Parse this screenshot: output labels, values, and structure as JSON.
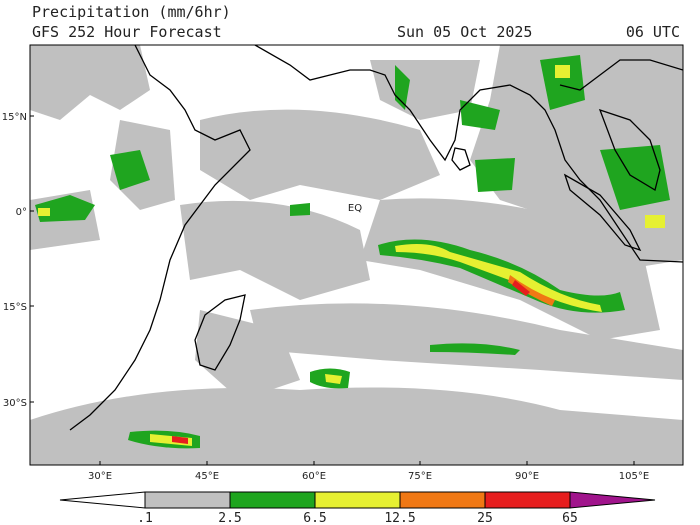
{
  "header": {
    "title": "Precipitation (mm/6hr)",
    "subtitle": "GFS 252 Hour Forecast",
    "date": "Sun 05 Oct 2025",
    "time": "06 UTC"
  },
  "map": {
    "lat_labels": [
      "15°N",
      "0°",
      "15°S",
      "30°S"
    ],
    "lon_labels": [
      "30°E",
      "45°E",
      "60°E",
      "75°E",
      "90°E",
      "105°E"
    ],
    "equator_label": "EQ"
  },
  "colorbar": {
    "labels": [
      ".1",
      "2.5",
      "6.5",
      "12.5",
      "25",
      "65"
    ],
    "colors": [
      "#ffffff",
      "#c0c0c0",
      "#1fa51f",
      "#e6f032",
      "#f07814",
      "#e61e1e",
      "#a0148c"
    ]
  }
}
